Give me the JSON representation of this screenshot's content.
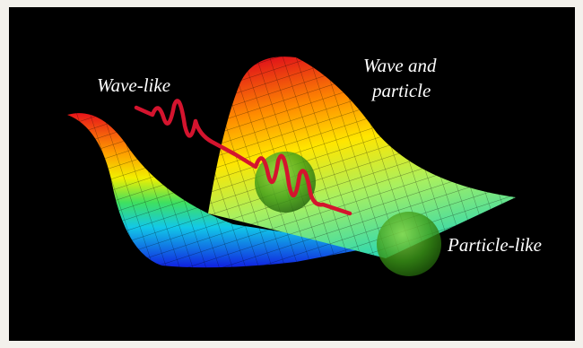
{
  "labels": {
    "wave_like": "Wave-like",
    "wave_and_particle": [
      "Wave and",
      "particle"
    ],
    "particle_like": "Particle-like"
  }
}
